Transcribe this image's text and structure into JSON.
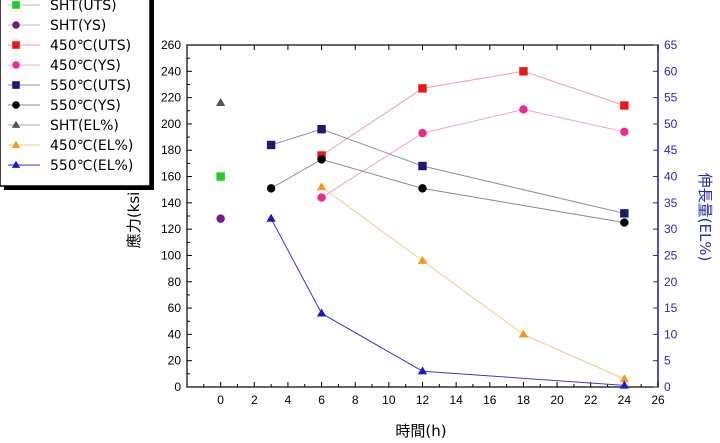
{
  "chart_data": {
    "type": "line",
    "xlabel": "時間(h)",
    "ylabel": "應力(ksi)",
    "y2label": "伸長量(EL%)",
    "xlim": [
      -2,
      26
    ],
    "ylim": [
      0,
      260
    ],
    "y2lim": [
      0,
      65
    ],
    "xticks": [
      0,
      2,
      4,
      6,
      8,
      10,
      12,
      14,
      16,
      18,
      20,
      22,
      24,
      26
    ],
    "yticks": [
      0,
      20,
      40,
      60,
      80,
      100,
      120,
      140,
      160,
      180,
      200,
      220,
      240,
      260
    ],
    "y2ticks": [
      0,
      5,
      10,
      15,
      20,
      25,
      30,
      35,
      40,
      45,
      50,
      55,
      60,
      65
    ],
    "legend_position": "top-left",
    "series": [
      {
        "name": "SHT(UTS)",
        "axis": "left",
        "marker": "square",
        "color": "#22cc22",
        "line_color": "#bbbbbb",
        "x": [
          0
        ],
        "y": [
          160
        ]
      },
      {
        "name": "SHT(YS)",
        "axis": "left",
        "marker": "circle",
        "color": "#7a1a8a",
        "line_color": "#bbbbbb",
        "x": [
          0
        ],
        "y": [
          128
        ]
      },
      {
        "name": "450℃(UTS)",
        "axis": "left",
        "marker": "square",
        "color": "#e81818",
        "line_color": "#f0a0a0",
        "x": [
          6,
          12,
          18,
          24
        ],
        "y": [
          176,
          227,
          240,
          214
        ]
      },
      {
        "name": "450℃(YS)",
        "axis": "left",
        "marker": "circle",
        "color": "#ee2a8c",
        "line_color": "#f3a6c8",
        "x": [
          6,
          12,
          18,
          24
        ],
        "y": [
          144,
          193,
          211,
          194
        ]
      },
      {
        "name": "550℃(UTS)",
        "axis": "left",
        "marker": "square",
        "color": "#1a1a70",
        "line_color": "#9090a8",
        "x": [
          3,
          6,
          12,
          24
        ],
        "y": [
          184,
          196,
          168,
          132
        ]
      },
      {
        "name": "550℃(YS)",
        "axis": "left",
        "marker": "circle",
        "color": "#000000",
        "line_color": "#888888",
        "x": [
          3,
          6,
          12,
          24
        ],
        "y": [
          151,
          173,
          151,
          125
        ]
      },
      {
        "name": "SHT(EL%)",
        "axis": "right",
        "marker": "triangle",
        "color": "#555555",
        "line_color": "#aaaaaa",
        "x": [
          0
        ],
        "y": [
          54
        ]
      },
      {
        "name": "450℃(EL%)",
        "axis": "right",
        "marker": "triangle",
        "color": "#f5961e",
        "line_color": "#f7c98a",
        "x": [
          6,
          12,
          18,
          24
        ],
        "y": [
          38,
          24,
          10,
          1.5
        ]
      },
      {
        "name": "550℃(EL%)",
        "axis": "right",
        "marker": "triangle",
        "color": "#1a1acc",
        "line_color": "#3a3acc",
        "x": [
          3,
          6,
          12,
          24
        ],
        "y": [
          32,
          14,
          3,
          0.3
        ]
      }
    ]
  }
}
